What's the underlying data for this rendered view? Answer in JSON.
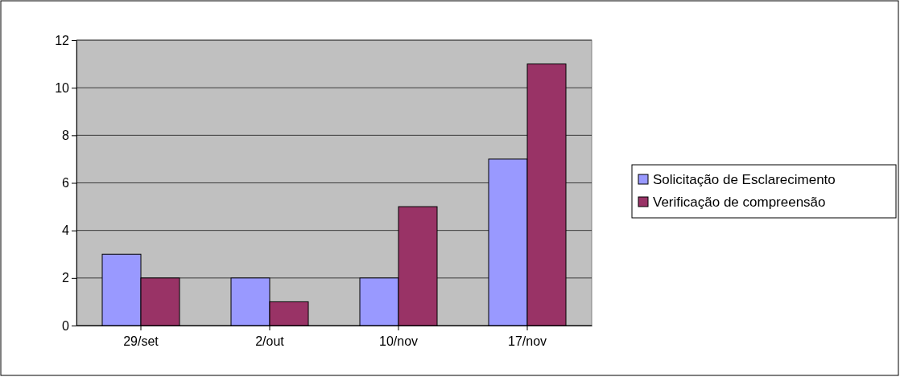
{
  "chart_data": {
    "type": "bar",
    "categories": [
      "29/set",
      "2/out",
      "10/nov",
      "17/nov"
    ],
    "series": [
      {
        "name": "Solicitação de Esclarecimento",
        "color": "#9999ff",
        "values": [
          3,
          2,
          2,
          7
        ]
      },
      {
        "name": "Verificação de compreensão",
        "color": "#993366",
        "values": [
          2,
          1,
          5,
          11
        ]
      }
    ],
    "ylim": [
      0,
      12
    ],
    "yticks": [
      0,
      2,
      4,
      6,
      8,
      10,
      12
    ],
    "grid": "y",
    "legend": "right"
  }
}
